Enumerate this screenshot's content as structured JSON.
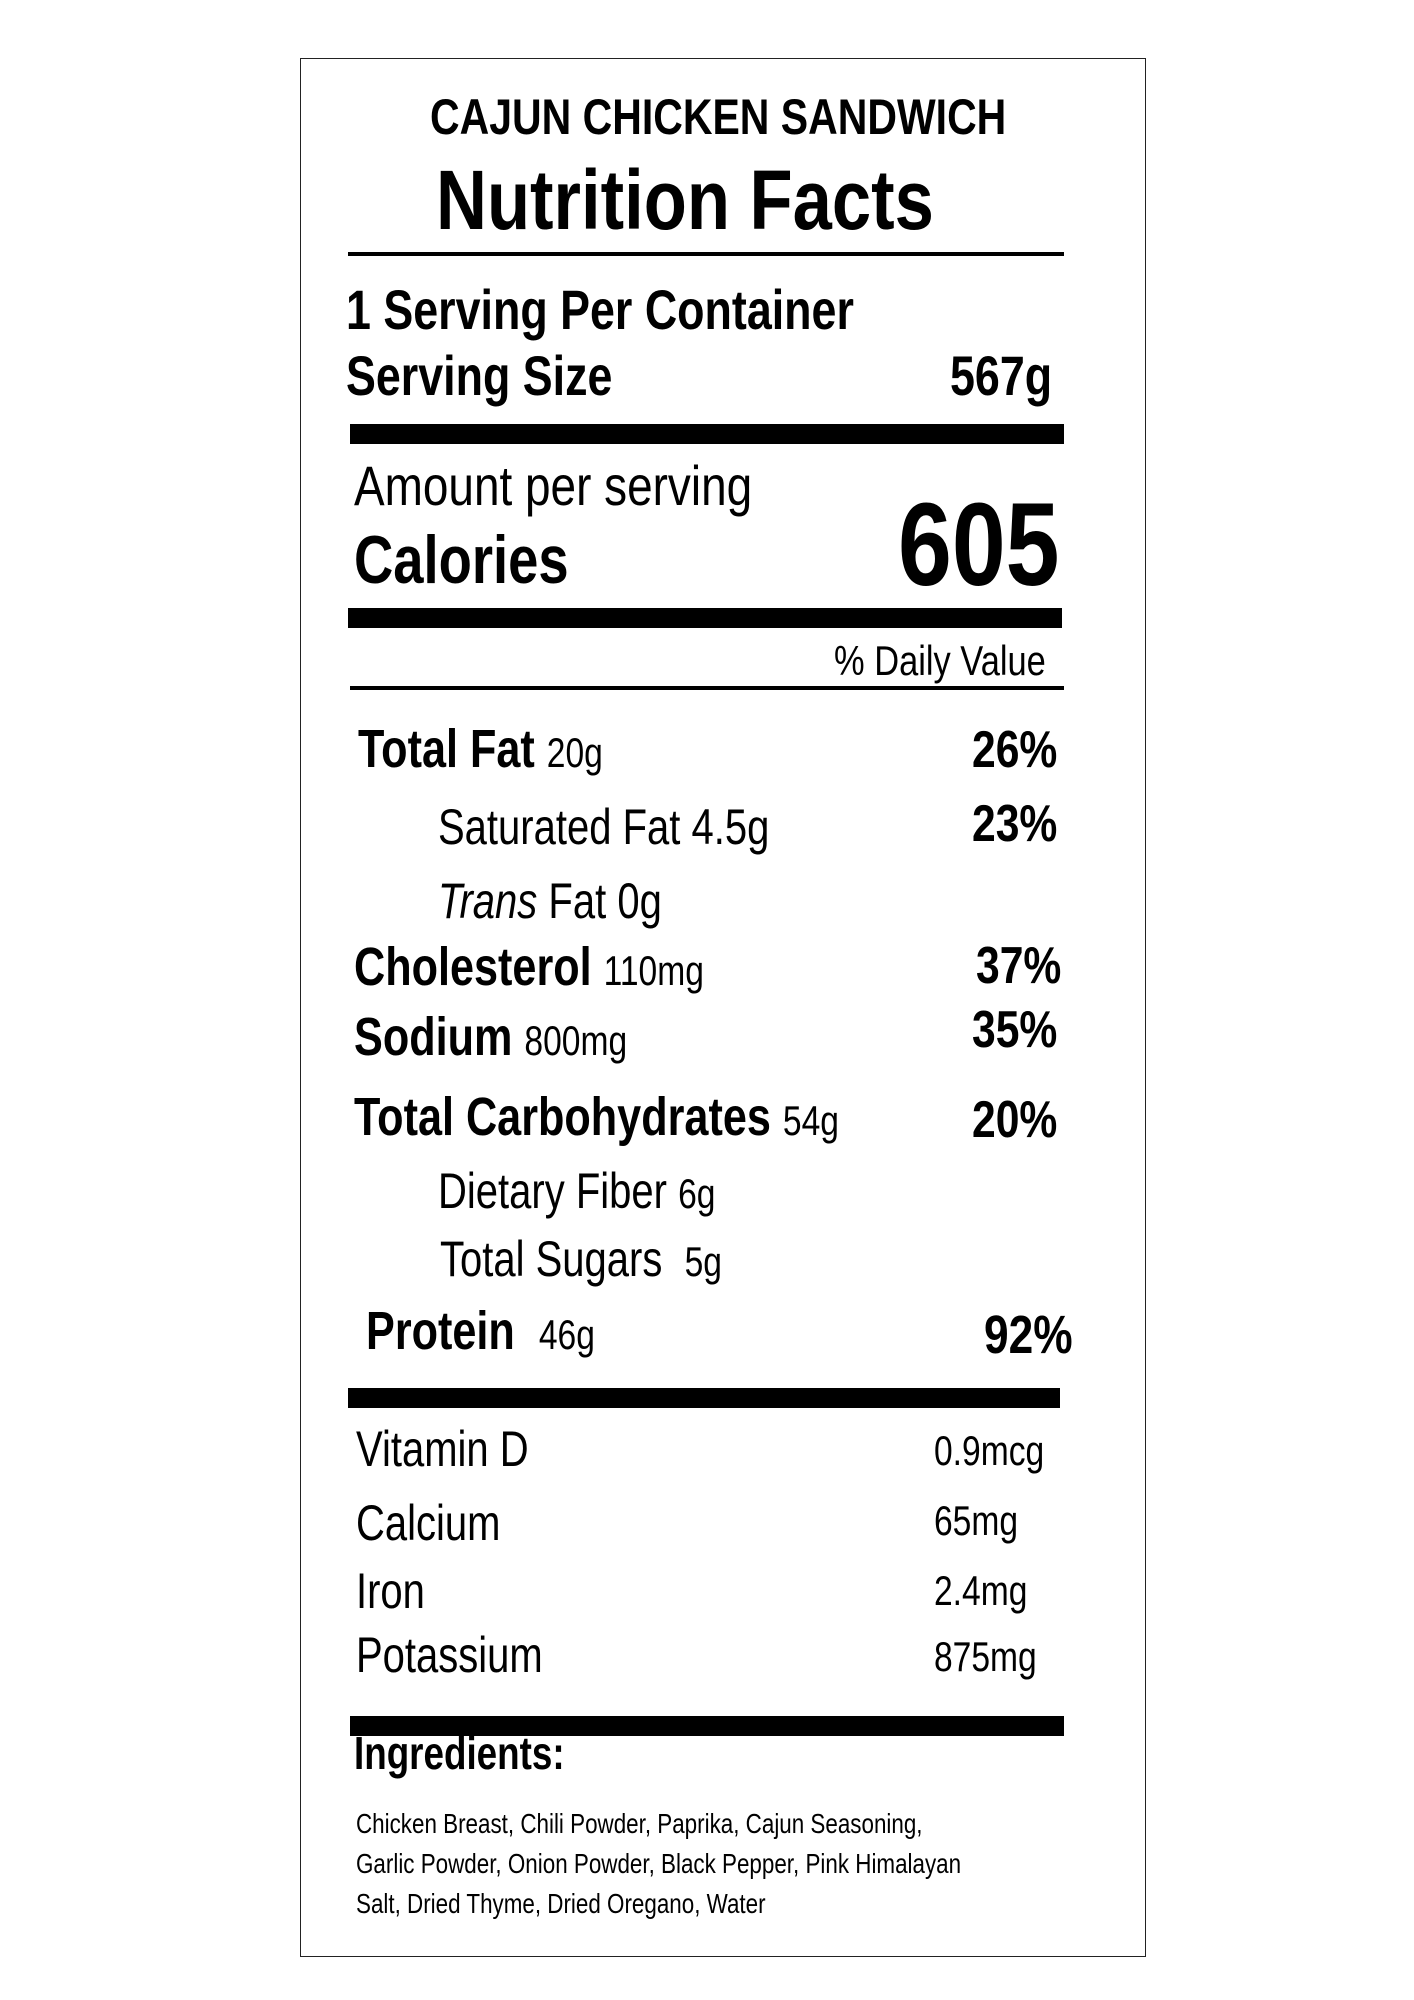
{
  "product_name": "CAJUN CHICKEN SANDWICH",
  "heading": "Nutrition Facts",
  "servings_per_container": "1 Serving Per Container",
  "serving_size_label": "Serving Size",
  "serving_size_value": "567g",
  "amount_per_serving": "Amount per serving",
  "calories_label": "Calories",
  "calories_value": "605",
  "daily_value_header": "% Daily Value",
  "nutrients": {
    "total_fat": {
      "label": "Total Fat",
      "amount": "20g",
      "dv": "26%"
    },
    "saturated_fat": {
      "label": "Saturated Fat",
      "amount": "4.5g",
      "dv": "23%"
    },
    "trans_fat": {
      "label_italic": "Trans",
      "label": "Fat",
      "amount": "0g"
    },
    "cholesterol": {
      "label": "Cholesterol",
      "amount": "110mg",
      "dv": "37%"
    },
    "sodium": {
      "label": "Sodium",
      "amount": "800mg",
      "dv": "35%"
    },
    "total_carbohydrates": {
      "label": "Total Carbohydrates",
      "amount": "54g",
      "dv": "20%"
    },
    "dietary_fiber": {
      "label": "Dietary Fiber",
      "amount": "6g"
    },
    "total_sugars": {
      "label": "Total Sugars",
      "amount": "5g"
    },
    "protein": {
      "label": "Protein",
      "amount": "46g",
      "dv": "92%"
    }
  },
  "vitamins": [
    {
      "label": "Vitamin D",
      "amount": "0.9mcg"
    },
    {
      "label": "Calcium",
      "amount": "65mg"
    },
    {
      "label": "Iron",
      "amount": "2.4mg"
    },
    {
      "label": "Potassium",
      "amount": "875mg"
    }
  ],
  "ingredients_label": "Ingredients:",
  "ingredients_lines": [
    "Chicken Breast, Chili Powder, Paprika, Cajun Seasoning,",
    "Garlic Powder, Onion Powder, Black Pepper, Pink Himalayan",
    "Salt, Dried Thyme, Dried Oregano, Water"
  ]
}
